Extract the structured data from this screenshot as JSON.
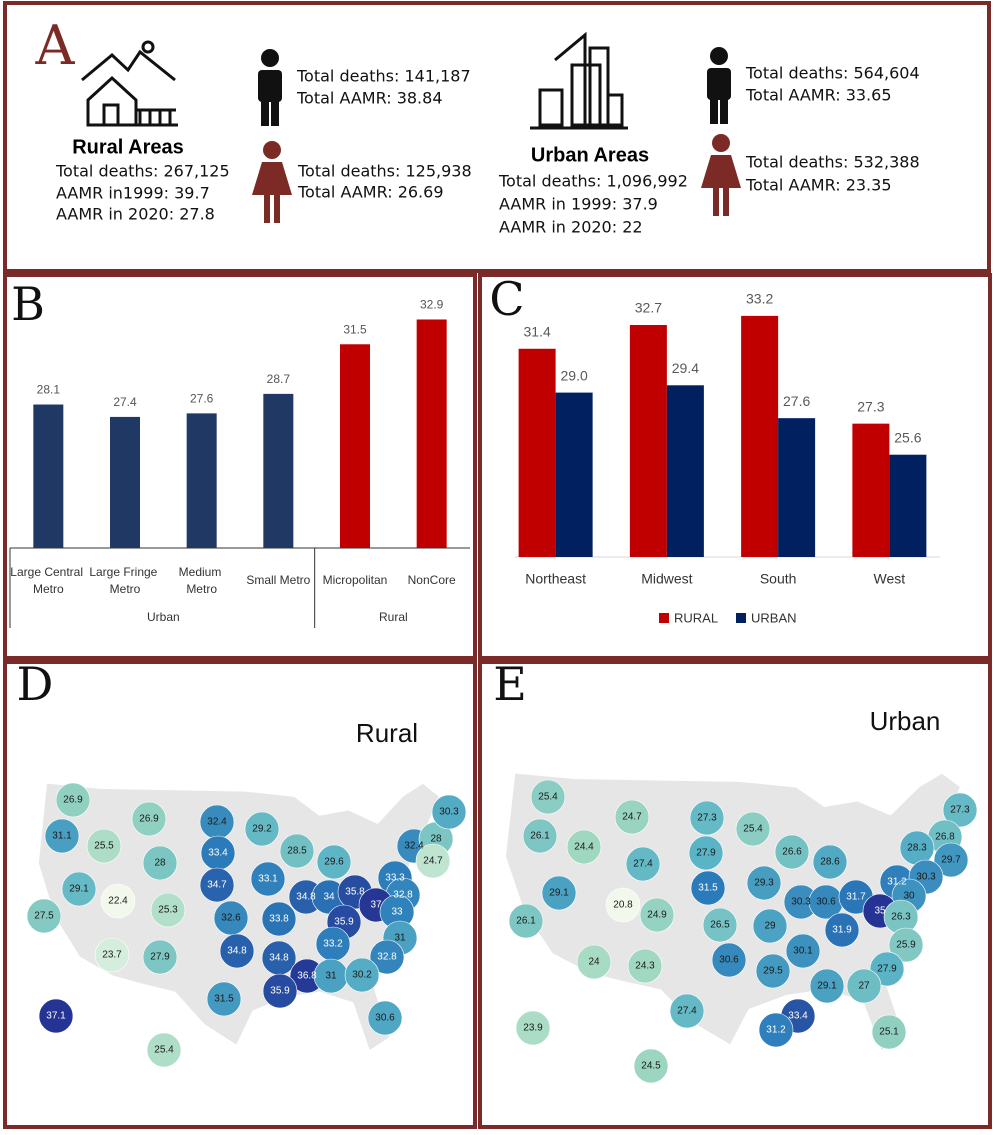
{
  "panel_a": {
    "letter": "A",
    "rural": {
      "title": "Rural Areas",
      "lines": [
        "Total deaths: 267,125",
        "AAMR in1999: 39.7",
        "AAMR in 2020: 27.8"
      ],
      "male": [
        "Total deaths: 141,187",
        "Total AAMR: 38.84"
      ],
      "female": [
        "Total deaths: 125,938",
        "Total AAMR: 26.69"
      ]
    },
    "urban": {
      "title": "Urban Areas",
      "lines": [
        "Total deaths: 1,096,992",
        "AAMR in 1999: 37.9",
        "AAMR in 2020: 22"
      ],
      "male": [
        "Total deaths: 564,604",
        "Total AAMR: 33.65"
      ],
      "female": [
        "Total deaths: 532,388",
        "Total AAMR: 23.35"
      ]
    }
  },
  "chart_data": [
    {
      "type": "bar",
      "label": "B",
      "categories": [
        "Large Central Metro",
        "Large Fringe Metro",
        "Medium Metro",
        "Small Metro",
        "Micropolitan",
        "NonCore"
      ],
      "values": [
        28.1,
        27.4,
        27.6,
        28.7,
        31.5,
        32.9
      ],
      "colors": [
        "#1f3864",
        "#1f3864",
        "#1f3864",
        "#1f3864",
        "#c00000",
        "#c00000"
      ],
      "groups": [
        {
          "label": "Urban",
          "count": 4
        },
        {
          "label": "Rural",
          "count": 2
        }
      ],
      "ylim": [
        20,
        34
      ]
    },
    {
      "type": "bar",
      "label": "C",
      "categories": [
        "Northeast",
        "Midwest",
        "South",
        "West"
      ],
      "series": [
        {
          "name": "RURAL",
          "color": "#c00000",
          "values": [
            31.4,
            32.7,
            33.2,
            27.3
          ]
        },
        {
          "name": "URBAN",
          "color": "#002060",
          "values": [
            29.0,
            29.4,
            27.6,
            25.6
          ],
          "value_labels": [
            "29.0",
            "29.4",
            "27.6",
            "25.6"
          ]
        }
      ],
      "legend": "bottom",
      "ylim": [
        20,
        35
      ]
    },
    {
      "type": "map",
      "label": "D",
      "title": "Rural",
      "values": [
        26.9,
        31.1,
        25.5,
        26.9,
        32.4,
        33.4,
        29.2,
        28,
        28.5,
        29.6,
        29.1,
        22.4,
        25.3,
        34.7,
        32.6,
        33.1,
        33.8,
        34.8,
        34,
        35.8,
        33.3,
        32.4,
        28,
        30.3,
        24.7,
        32.8,
        37,
        33,
        35.9,
        31,
        33.2,
        32.8,
        27.5,
        23.7,
        27.9,
        34.8,
        34.8,
        31.5,
        36.8,
        35.9,
        31,
        30.2,
        30.6,
        37.1,
        25.4
      ]
    },
    {
      "type": "map",
      "label": "E",
      "title": "Urban",
      "values": [
        25.4,
        26.1,
        24.7,
        27.3,
        25.4,
        27.3,
        26.8,
        28.3,
        29.7,
        24.4,
        27.9,
        26.6,
        28.6,
        27.4,
        29.1,
        20.8,
        31.5,
        29.3,
        31.2,
        30.3,
        30,
        24.9,
        26.5,
        30.3,
        30.6,
        31.7,
        35,
        26.3,
        29,
        31.9,
        26.1,
        25.9,
        30.1,
        30.6,
        29.5,
        27.9,
        24,
        24.3,
        29.1,
        27,
        33.4,
        31.2,
        27.4,
        25.1,
        23.9,
        24.5
      ]
    }
  ]
}
